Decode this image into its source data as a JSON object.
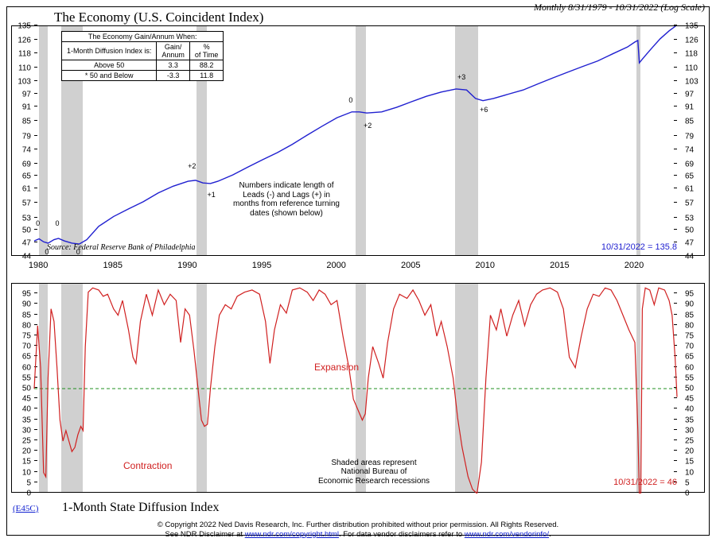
{
  "header_right": "Monthly 8/31/1979 - 10/31/2022 (Log Scale)",
  "top_title": "The Economy (U.S. Coincident Index)",
  "bottom_title": "1-Month State Diffusion Index",
  "code_link": "(E45C)",
  "top_chart": {
    "type": "line",
    "scale": "log",
    "ylim": [
      44,
      135
    ],
    "yticks": [
      44,
      47,
      50,
      53,
      57,
      61,
      65,
      69,
      74,
      79,
      85,
      91,
      97,
      103,
      110,
      118,
      126,
      135
    ],
    "xlim": [
      1979.67,
      2022.83
    ],
    "xticks": [
      1980,
      1985,
      1990,
      1995,
      2000,
      2005,
      2010,
      2015,
      2020
    ],
    "line_color": "#2020d0",
    "line_width": 1.4,
    "background_color": "#ffffff",
    "series": [
      [
        1979.67,
        47.5
      ],
      [
        1980.0,
        48.0
      ],
      [
        1980.3,
        47.3
      ],
      [
        1980.6,
        47.0
      ],
      [
        1981.0,
        47.8
      ],
      [
        1981.3,
        48.1
      ],
      [
        1981.7,
        47.5
      ],
      [
        1982.2,
        47.0
      ],
      [
        1982.7,
        46.8
      ],
      [
        1983.2,
        47.8
      ],
      [
        1984.0,
        51.0
      ],
      [
        1985.0,
        53.5
      ],
      [
        1986.0,
        55.5
      ],
      [
        1987.0,
        57.5
      ],
      [
        1988.0,
        60.0
      ],
      [
        1989.0,
        62.0
      ],
      [
        1990.0,
        63.5
      ],
      [
        1990.5,
        63.8
      ],
      [
        1991.0,
        63.0
      ],
      [
        1991.5,
        62.8
      ],
      [
        1992.0,
        63.5
      ],
      [
        1993.0,
        65.5
      ],
      [
        1994.0,
        68.0
      ],
      [
        1995.0,
        70.5
      ],
      [
        1996.0,
        73.0
      ],
      [
        1997.0,
        76.0
      ],
      [
        1998.0,
        79.5
      ],
      [
        1999.0,
        83.0
      ],
      [
        2000.0,
        86.5
      ],
      [
        2001.0,
        89.0
      ],
      [
        2001.5,
        89.0
      ],
      [
        2002.0,
        88.5
      ],
      [
        2003.0,
        89.0
      ],
      [
        2004.0,
        91.0
      ],
      [
        2005.0,
        93.5
      ],
      [
        2006.0,
        96.0
      ],
      [
        2007.0,
        98.0
      ],
      [
        2008.0,
        99.5
      ],
      [
        2008.7,
        99.0
      ],
      [
        2009.3,
        95.0
      ],
      [
        2009.8,
        94.0
      ],
      [
        2010.5,
        95.0
      ],
      [
        2011.5,
        97.0
      ],
      [
        2012.5,
        99.0
      ],
      [
        2013.5,
        102.0
      ],
      [
        2014.5,
        105.0
      ],
      [
        2015.5,
        108.0
      ],
      [
        2016.5,
        111.0
      ],
      [
        2017.5,
        114.0
      ],
      [
        2018.5,
        118.0
      ],
      [
        2019.5,
        122.0
      ],
      [
        2020.0,
        125.0
      ],
      [
        2020.2,
        126.0
      ],
      [
        2020.3,
        113.0
      ],
      [
        2020.5,
        115.0
      ],
      [
        2020.8,
        118.0
      ],
      [
        2021.2,
        122.0
      ],
      [
        2021.7,
        127.0
      ],
      [
        2022.3,
        132.0
      ],
      [
        2022.83,
        135.8
      ]
    ],
    "recessions": [
      [
        1980.0,
        1980.58
      ],
      [
        1981.5,
        1982.92
      ],
      [
        1990.58,
        1991.25
      ],
      [
        2001.25,
        2001.92
      ],
      [
        2007.92,
        2009.5
      ],
      [
        2020.1,
        2020.35
      ]
    ],
    "markers": [
      {
        "x": 1980.0,
        "y": 50,
        "label": "0"
      },
      {
        "x": 1981.3,
        "y": 50,
        "label": "0"
      },
      {
        "x": 1980.6,
        "y": 47,
        "label": "0",
        "below": true
      },
      {
        "x": 1982.7,
        "y": 47,
        "label": "0",
        "below": true
      },
      {
        "x": 1990.2,
        "y": 66,
        "label": "+2"
      },
      {
        "x": 1991.5,
        "y": 62,
        "label": "+1",
        "below": true
      },
      {
        "x": 2001.0,
        "y": 91,
        "label": "0"
      },
      {
        "x": 2002.0,
        "y": 87,
        "label": "+2",
        "below": true
      },
      {
        "x": 2008.3,
        "y": 102,
        "label": "+3"
      },
      {
        "x": 2009.8,
        "y": 94,
        "label": "+6",
        "below": true
      }
    ],
    "end_label": {
      "text": "10/31/2022 = 135.8",
      "color": "#2020d0"
    },
    "source_text": "Source: Federal Reserve Bank of Philadelphia",
    "note_text": "Numbers indicate length of\nLeads (-) and Lags (+) in\nmonths from reference turning\ndates (shown below)",
    "table": {
      "title": "The Economy Gain/Annum When:",
      "headers": [
        "1-Month Diffusion Index is:",
        "Gain/\nAnnum",
        "%\nof Time"
      ],
      "rows": [
        [
          "Above 50",
          "3.3",
          "88.2"
        ],
        [
          "* 50 and Below",
          "-3.3",
          "11.8"
        ]
      ]
    }
  },
  "bottom_chart": {
    "type": "line",
    "ylim": [
      0,
      100
    ],
    "yticks": [
      0,
      5,
      10,
      15,
      20,
      25,
      30,
      35,
      40,
      45,
      50,
      55,
      60,
      65,
      70,
      75,
      80,
      85,
      90,
      95
    ],
    "xlim": [
      1979.67,
      2022.83
    ],
    "line_color": "#d02020",
    "line_width": 1.2,
    "threshold": {
      "value": 50,
      "color": "#209020",
      "dash": "4 3"
    },
    "series": [
      [
        1979.67,
        50
      ],
      [
        1979.9,
        80
      ],
      [
        1980.1,
        60
      ],
      [
        1980.3,
        10
      ],
      [
        1980.45,
        8
      ],
      [
        1980.6,
        55
      ],
      [
        1980.8,
        88
      ],
      [
        1981.0,
        82
      ],
      [
        1981.2,
        60
      ],
      [
        1981.4,
        35
      ],
      [
        1981.6,
        25
      ],
      [
        1981.8,
        30
      ],
      [
        1982.0,
        25
      ],
      [
        1982.2,
        20
      ],
      [
        1982.4,
        22
      ],
      [
        1982.6,
        28
      ],
      [
        1982.8,
        32
      ],
      [
        1982.95,
        30
      ],
      [
        1983.1,
        70
      ],
      [
        1983.3,
        96
      ],
      [
        1983.6,
        98
      ],
      [
        1984.0,
        97
      ],
      [
        1984.3,
        94
      ],
      [
        1984.6,
        95
      ],
      [
        1985.0,
        88
      ],
      [
        1985.3,
        85
      ],
      [
        1985.6,
        92
      ],
      [
        1986.0,
        78
      ],
      [
        1986.3,
        65
      ],
      [
        1986.5,
        62
      ],
      [
        1986.8,
        82
      ],
      [
        1987.2,
        95
      ],
      [
        1987.6,
        85
      ],
      [
        1988.0,
        97
      ],
      [
        1988.4,
        90
      ],
      [
        1988.8,
        95
      ],
      [
        1989.2,
        92
      ],
      [
        1989.5,
        72
      ],
      [
        1989.8,
        88
      ],
      [
        1990.1,
        85
      ],
      [
        1990.4,
        68
      ],
      [
        1990.7,
        48
      ],
      [
        1990.9,
        35
      ],
      [
        1991.1,
        32
      ],
      [
        1991.3,
        33
      ],
      [
        1991.5,
        50
      ],
      [
        1991.8,
        70
      ],
      [
        1992.1,
        85
      ],
      [
        1992.5,
        90
      ],
      [
        1992.9,
        88
      ],
      [
        1993.3,
        94
      ],
      [
        1993.8,
        96
      ],
      [
        1994.3,
        97
      ],
      [
        1994.8,
        95
      ],
      [
        1995.2,
        82
      ],
      [
        1995.5,
        62
      ],
      [
        1995.8,
        78
      ],
      [
        1996.2,
        90
      ],
      [
        1996.6,
        86
      ],
      [
        1997.0,
        97
      ],
      [
        1997.5,
        98
      ],
      [
        1998.0,
        96
      ],
      [
        1998.4,
        92
      ],
      [
        1998.8,
        97
      ],
      [
        1999.2,
        95
      ],
      [
        1999.6,
        90
      ],
      [
        2000.0,
        92
      ],
      [
        2000.4,
        75
      ],
      [
        2000.8,
        60
      ],
      [
        2001.1,
        45
      ],
      [
        2001.4,
        40
      ],
      [
        2001.7,
        35
      ],
      [
        2001.9,
        38
      ],
      [
        2002.1,
        55
      ],
      [
        2002.4,
        70
      ],
      [
        2002.8,
        62
      ],
      [
        2003.1,
        55
      ],
      [
        2003.4,
        72
      ],
      [
        2003.8,
        88
      ],
      [
        2004.2,
        95
      ],
      [
        2004.7,
        93
      ],
      [
        2005.1,
        97
      ],
      [
        2005.5,
        92
      ],
      [
        2005.9,
        85
      ],
      [
        2006.3,
        90
      ],
      [
        2006.7,
        75
      ],
      [
        2007.0,
        82
      ],
      [
        2007.4,
        70
      ],
      [
        2007.8,
        55
      ],
      [
        2008.1,
        36
      ],
      [
        2008.4,
        22
      ],
      [
        2008.8,
        8
      ],
      [
        2009.1,
        2
      ],
      [
        2009.4,
        0
      ],
      [
        2009.7,
        15
      ],
      [
        2010.0,
        55
      ],
      [
        2010.3,
        85
      ],
      [
        2010.7,
        78
      ],
      [
        2011.0,
        88
      ],
      [
        2011.4,
        75
      ],
      [
        2011.8,
        85
      ],
      [
        2012.2,
        92
      ],
      [
        2012.6,
        80
      ],
      [
        2013.0,
        90
      ],
      [
        2013.4,
        95
      ],
      [
        2013.8,
        97
      ],
      [
        2014.3,
        98
      ],
      [
        2014.8,
        96
      ],
      [
        2015.2,
        88
      ],
      [
        2015.6,
        65
      ],
      [
        2016.0,
        60
      ],
      [
        2016.4,
        75
      ],
      [
        2016.8,
        88
      ],
      [
        2017.2,
        95
      ],
      [
        2017.6,
        94
      ],
      [
        2018.0,
        98
      ],
      [
        2018.4,
        97
      ],
      [
        2018.8,
        92
      ],
      [
        2019.2,
        85
      ],
      [
        2019.6,
        78
      ],
      [
        2020.0,
        72
      ],
      [
        2020.2,
        30
      ],
      [
        2020.3,
        0
      ],
      [
        2020.4,
        0
      ],
      [
        2020.5,
        88
      ],
      [
        2020.7,
        98
      ],
      [
        2021.0,
        97
      ],
      [
        2021.3,
        90
      ],
      [
        2021.6,
        98
      ],
      [
        2022.0,
        97
      ],
      [
        2022.3,
        92
      ],
      [
        2022.5,
        85
      ],
      [
        2022.7,
        65
      ],
      [
        2022.83,
        46
      ]
    ],
    "expansion_label": "Expansion",
    "contraction_label": "Contraction",
    "shaded_note": "Shaded areas represent\nNational Bureau of\nEconomic Research recessions",
    "end_label": {
      "text": "10/31/2022 = 46",
      "color": "#d02020"
    }
  },
  "copyright": {
    "line1": "© Copyright 2022 Ned Davis Research, Inc.  Further distribution prohibited without prior permission.  All Rights Reserved.",
    "line2_a": "See NDR Disclaimer at ",
    "line2_link1": "www.ndr.com/copyright.html",
    "line2_b": ". For data vendor disclaimers refer to ",
    "line2_link2": "www.ndr.com/vendorinfo/",
    "line2_c": "."
  }
}
